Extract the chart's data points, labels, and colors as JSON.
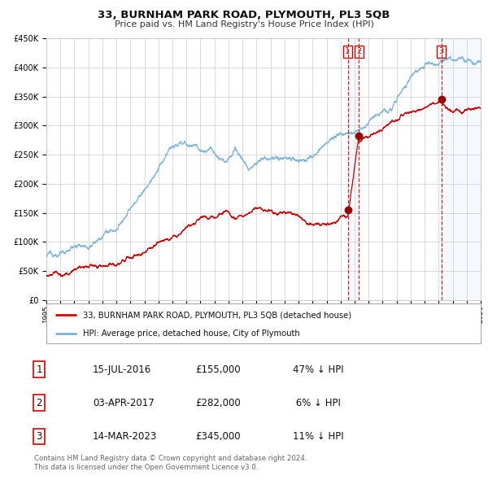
{
  "title": "33, BURNHAM PARK ROAD, PLYMOUTH, PL3 5QB",
  "subtitle": "Price paid vs. HM Land Registry's House Price Index (HPI)",
  "legend_line1": "33, BURNHAM PARK ROAD, PLYMOUTH, PL3 5QB (detached house)",
  "legend_line2": "HPI: Average price, detached house, City of Plymouth",
  "transactions": [
    {
      "num": 1,
      "date": "15-JUL-2016",
      "price": 155000,
      "pct": "47%",
      "dir": "↓",
      "x_year": 2016.54
    },
    {
      "num": 2,
      "date": "03-APR-2017",
      "price": 282000,
      "pct": "6%",
      "dir": "↓",
      "x_year": 2017.27
    },
    {
      "num": 3,
      "date": "14-MAR-2023",
      "price": 345000,
      "pct": "11%",
      "dir": "↓",
      "x_year": 2023.2
    }
  ],
  "footer1": "Contains HM Land Registry data © Crown copyright and database right 2024.",
  "footer2": "This data is licensed under the Open Government Licence v3.0.",
  "xmin": 1995.0,
  "xmax": 2026.0,
  "ymin": 0,
  "ymax": 450000,
  "hpi_color": "#7ab4d8",
  "price_color": "#cc0000",
  "vline_color": "#cc0000",
  "shade_color": "#ddeeff",
  "grid_color": "#cccccc",
  "bg_color": "#ffffff"
}
